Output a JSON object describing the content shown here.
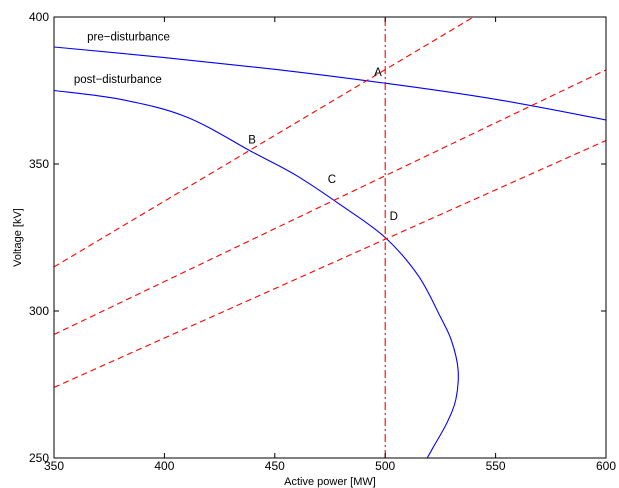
{
  "chart_data": {
    "type": "line",
    "xlabel": "Active power [MW]",
    "ylabel": "Voltage [kV]",
    "xlim": [
      350,
      600
    ],
    "ylim": [
      250,
      400
    ],
    "xticks": [
      "350",
      "400",
      "450",
      "500",
      "550",
      "600"
    ],
    "yticks": [
      "250",
      "300",
      "350",
      "400"
    ],
    "grid": false,
    "series": [
      {
        "name": "pre-disturbance",
        "style": "solid",
        "color": "#0000ff",
        "x": [
          350,
          400,
          450,
          500,
          550,
          600
        ],
        "y": [
          389.8,
          386.2,
          382.2,
          377.5,
          372.0,
          365.0
        ]
      },
      {
        "name": "post-disturbance",
        "style": "solid",
        "color": "#0000ff",
        "x": [
          350,
          380,
          410,
          440,
          460,
          480,
          500,
          515,
          525,
          530,
          533,
          532,
          528,
          522,
          519
        ],
        "y": [
          375,
          372,
          366,
          354,
          346,
          336,
          325,
          312,
          298,
          290,
          280,
          270,
          262,
          254,
          250
        ]
      },
      {
        "name": "",
        "style": "dashed",
        "color": "#ff0000",
        "x": [
          350,
          540
        ],
        "y": [
          315,
          400
        ]
      },
      {
        "name": "",
        "style": "dashed",
        "color": "#ff0000",
        "x": [
          350,
          600
        ],
        "y": [
          292,
          382
        ]
      },
      {
        "name": "",
        "style": "dashed",
        "color": "#ff0000",
        "x": [
          350,
          600
        ],
        "y": [
          274,
          358
        ]
      },
      {
        "name": "",
        "style": "dashdot",
        "color": "#ff0000",
        "x": [
          500,
          500
        ],
        "y": [
          250,
          400
        ]
      }
    ],
    "annotations": [
      {
        "text": "pre−disturbance",
        "x": 365,
        "y": 392
      },
      {
        "text": "post−disturbance",
        "x": 359,
        "y": 377.5
      },
      {
        "text": "A",
        "x": 495,
        "y": 380
      },
      {
        "text": "B",
        "x": 438,
        "y": 357
      },
      {
        "text": "C",
        "x": 474,
        "y": 343.5
      },
      {
        "text": "D",
        "x": 502,
        "y": 331
      }
    ]
  }
}
